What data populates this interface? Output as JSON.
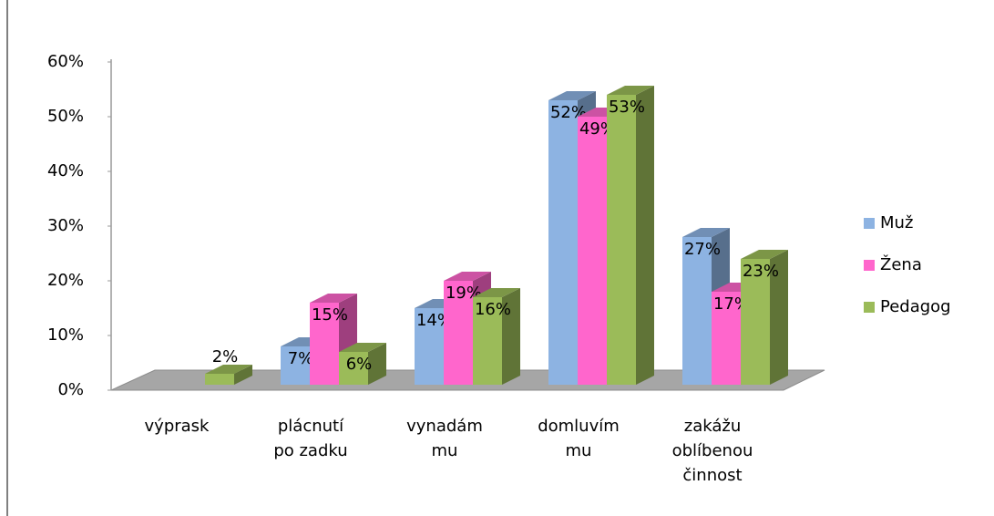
{
  "chart_data": {
    "type": "bar3d",
    "categories": [
      "výprask",
      "plácnutí po zadku",
      "vynadám mu",
      "domluvím mu",
      "zakážu oblíbenou činnost"
    ],
    "series": [
      {
        "name": "Muž",
        "color": "#8db3e2",
        "values": [
          null,
          7,
          14,
          52,
          27
        ],
        "value_labels": [
          null,
          "7%",
          "14%",
          "52%",
          "27%"
        ]
      },
      {
        "name": "Žena",
        "color": "#ff66cc",
        "values": [
          null,
          15,
          19,
          49,
          17
        ],
        "value_labels": [
          null,
          "15%",
          "19%",
          "49%",
          "17%"
        ]
      },
      {
        "name": "Pedagog",
        "color": "#9bbb59",
        "values": [
          2,
          6,
          16,
          53,
          23
        ],
        "value_labels": [
          "2%",
          "6%",
          "16%",
          "53%",
          "23%"
        ]
      }
    ],
    "ylim": [
      0,
      60
    ],
    "yticks": [
      {
        "value": 0,
        "label": "0%"
      },
      {
        "value": 10,
        "label": "10%"
      },
      {
        "value": 20,
        "label": "20%"
      },
      {
        "value": 30,
        "label": "30%"
      },
      {
        "value": 40,
        "label": "40%"
      },
      {
        "value": 50,
        "label": "50%"
      },
      {
        "value": 60,
        "label": "60%"
      }
    ],
    "legend": "right"
  }
}
